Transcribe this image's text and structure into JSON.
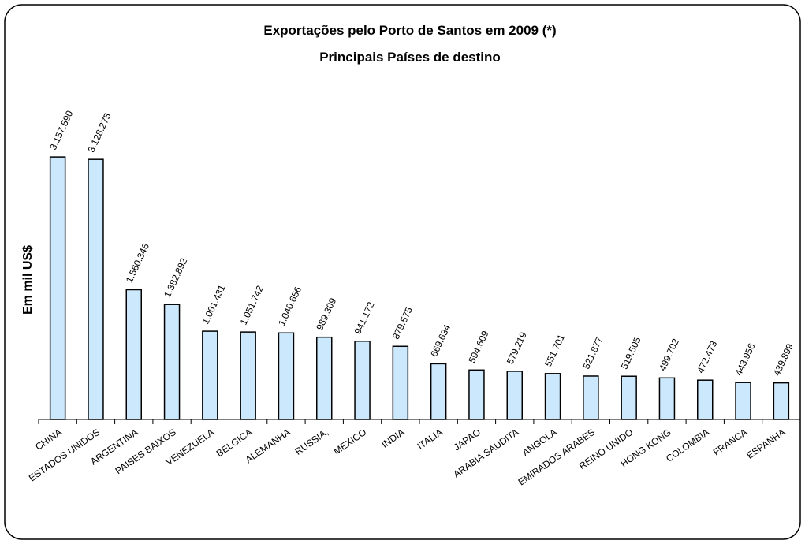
{
  "chart_data": {
    "type": "bar",
    "title": "Exportações pelo Porto de Santos em 2009 (*)",
    "subtitle": "Principais Países de destino",
    "y_label": "Em mil US$",
    "categories": [
      "CHINA",
      "ESTADOS UNIDOS",
      "ARGENTINA",
      "PAISES BAIXOS",
      "VENEZUELA",
      "BELGICA",
      "ALEMANHA",
      "RUSSIA,",
      "MEXICO",
      "INDIA",
      "ITALIA",
      "JAPAO",
      "ARABIA SAUDITA",
      "ANGOLA",
      "EMIRADOS ARABES",
      "REINO UNIDO",
      "HONG KONG",
      "COLOMBIA",
      "FRANCA",
      "ESPANHA"
    ],
    "values": [
      3157590,
      3128275,
      1560346,
      1382892,
      1061431,
      1051742,
      1040656,
      989309,
      941172,
      879575,
      669634,
      594609,
      579219,
      551701,
      521877,
      519505,
      499702,
      472473,
      443956,
      439899
    ],
    "value_labels": [
      "3.157.590",
      "3.128.275",
      "1.560.346",
      "1.382.892",
      "1.061.431",
      "1.051.742",
      "1.040.656",
      "989.309",
      "941.172",
      "879.575",
      "669.634",
      "594.609",
      "579.219",
      "551.701",
      "521.877",
      "519.505",
      "499.702",
      "472.473",
      "443.956",
      "439.899"
    ],
    "color": "#cce8fc",
    "ylim": [
      0,
      3500000
    ]
  }
}
